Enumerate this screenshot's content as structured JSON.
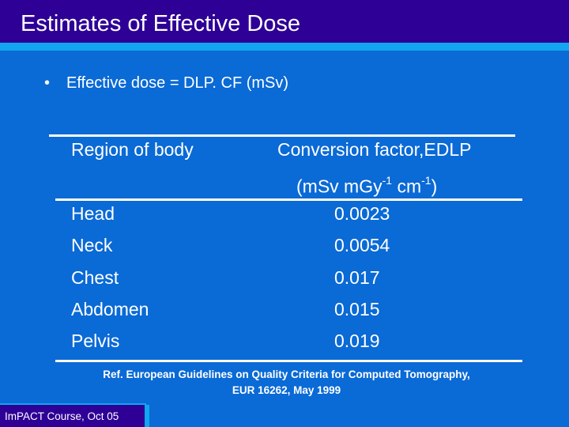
{
  "slide": {
    "title": "Estimates of Effective Dose",
    "bullet": "Effective dose = DLP. CF (mSv)",
    "bullet_marker": "•"
  },
  "table": {
    "header_region": "Region of body",
    "header_factor_line1": "Conversion factor,EDLP",
    "header_factor_unit_prefix": "(mSv mGy",
    "header_factor_unit_exp1": "-1",
    "header_factor_unit_mid": " cm",
    "header_factor_unit_exp2": "-1",
    "header_factor_unit_suffix": ")",
    "rows": [
      {
        "region": "Head",
        "factor": "0.0023"
      },
      {
        "region": "Neck",
        "factor": "0.0054"
      },
      {
        "region": "Chest",
        "factor": "0.017"
      },
      {
        "region": "Abdomen",
        "factor": "0.015"
      },
      {
        "region": "Pelvis",
        "factor": "0.019"
      }
    ]
  },
  "reference": {
    "line1": "Ref. European Guidelines on Quality Criteria for Computed Tomography,",
    "line2": "EUR 16262, May 1999"
  },
  "footer": {
    "course": "ImPACT Course, Oct 05"
  },
  "colors": {
    "background": "#0a6ad6",
    "title_bar": "#2e0096",
    "accent_stripe": "#12a6f0",
    "text": "#ffffff"
  }
}
